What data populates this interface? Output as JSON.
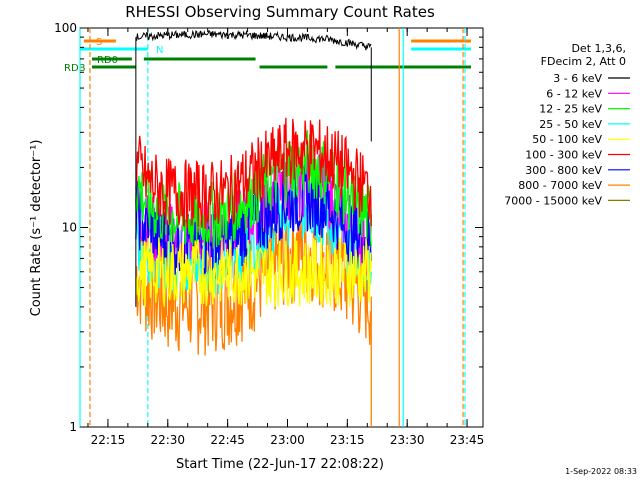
{
  "chart_data": {
    "type": "line",
    "title": "RHESSI Observing Summary Count Rates",
    "xlabel": "Start Time (22-Jun-17 22:08:22)",
    "ylabel": "Count Rate (s⁻¹ detector⁻¹)",
    "y_scale": "log",
    "ylim": [
      1,
      100
    ],
    "y_ticks": [
      "1",
      "10",
      "100"
    ],
    "xlim": [
      "22:08",
      "23:49"
    ],
    "x_ticks": [
      "22:15",
      "22:30",
      "22:45",
      "23:00",
      "23:15",
      "23:30",
      "23:45"
    ],
    "legend_header": [
      "Det 1,3,6,",
      "FDecim 2, Att 0"
    ],
    "legend_position": "right",
    "timestamp": "1-Sep-2022 08:33",
    "flags": [
      {
        "label": "S",
        "color": "#ff8000",
        "segments": [
          [
            "22:09",
            "22:17"
          ],
          [
            "23:31",
            "23:46"
          ]
        ]
      },
      {
        "label": "N",
        "color": "#00ffff",
        "segments": [
          [
            "22:08",
            "22:25"
          ],
          [
            "23:31",
            "23:46"
          ]
        ]
      },
      {
        "label": "RD0",
        "color": "#008000",
        "segments": [
          [
            "22:11",
            "22:21"
          ],
          [
            "22:24",
            "22:52"
          ]
        ]
      },
      {
        "label": "RDB",
        "color": "#008000",
        "segments": [
          [
            "22:11",
            "22:22"
          ],
          [
            "22:53",
            "23:10"
          ],
          [
            "23:12",
            "23:46"
          ]
        ]
      }
    ],
    "vlines": [
      {
        "time": "22:08",
        "color": "#00ffff",
        "dash": false
      },
      {
        "time": "22:10:30",
        "color": "#ff8000",
        "dash": true
      },
      {
        "time": "22:25",
        "color": "#00ffff",
        "dash": true
      },
      {
        "time": "23:28",
        "color": "#ff8000",
        "dash": false
      },
      {
        "time": "23:29",
        "color": "#00ffff",
        "dash": false
      },
      {
        "time": "23:44",
        "color": "#ff8000",
        "dash": true
      },
      {
        "time": "23:44:30",
        "color": "#00ffff",
        "dash": true
      }
    ],
    "series": [
      {
        "name": "3 - 6 keV",
        "color": "#000000",
        "x": [
          "22:22",
          "22:30",
          "22:40",
          "22:50",
          "23:00",
          "23:10",
          "23:17",
          "23:21"
        ],
        "y": [
          90,
          92,
          93,
          92,
          90,
          88,
          83,
          80
        ]
      },
      {
        "name": "6 - 12 keV",
        "color": "#ff00ff",
        "x": [
          "22:22",
          "22:25",
          "22:30",
          "22:38",
          "22:45",
          "22:52",
          "23:00",
          "23:05",
          "23:10",
          "23:15",
          "23:21"
        ],
        "y": [
          14,
          10,
          9,
          9,
          9.5,
          12,
          16,
          17,
          15,
          11,
          8
        ]
      },
      {
        "name": "12 - 25 keV",
        "color": "#00ff00",
        "x": [
          "22:22",
          "22:25",
          "22:30",
          "22:38",
          "22:45",
          "22:52",
          "23:00",
          "23:05",
          "23:10",
          "23:15",
          "23:21"
        ],
        "y": [
          17,
          13,
          11.5,
          11,
          12,
          15,
          20,
          21,
          19,
          14.5,
          11
        ]
      },
      {
        "name": "25 - 50 keV",
        "color": "#00ffff",
        "x": [
          "22:22",
          "22:25",
          "22:30",
          "22:38",
          "22:45",
          "22:52",
          "23:00",
          "23:05",
          "23:10",
          "23:15",
          "23:21"
        ],
        "y": [
          9,
          8,
          7,
          6.5,
          7,
          9,
          12,
          13,
          11,
          8.5,
          7
        ]
      },
      {
        "name": "50 - 100 keV",
        "color": "#ffff00",
        "x": [
          "22:22",
          "23:21"
        ],
        "y": [
          6,
          6
        ]
      },
      {
        "name": "100 - 300 keV",
        "color": "#ff0000",
        "x": [
          "22:22",
          "22:25",
          "22:30",
          "22:38",
          "22:45",
          "22:52",
          "23:00",
          "23:05",
          "23:10",
          "23:15",
          "23:21"
        ],
        "y": [
          21,
          17,
          15,
          14.5,
          15,
          19,
          24,
          25,
          23,
          19,
          15
        ]
      },
      {
        "name": "300 - 800 keV",
        "color": "#0000ff",
        "x": [
          "22:22",
          "22:25",
          "22:30",
          "22:38",
          "22:45",
          "22:52",
          "23:00",
          "23:05",
          "23:10",
          "23:15",
          "23:21"
        ],
        "y": [
          12,
          10,
          8.5,
          8,
          8.5,
          10.5,
          13.5,
          14,
          13,
          10,
          8.5
        ]
      },
      {
        "name": "800 - 7000 keV",
        "color": "#ff8000",
        "x": [
          "22:22",
          "22:25",
          "22:30",
          "22:38",
          "22:45",
          "22:52",
          "23:00",
          "23:05",
          "23:10",
          "23:15",
          "23:21"
        ],
        "y": [
          6,
          5,
          4.3,
          4.2,
          4.5,
          5.5,
          7.5,
          8,
          7,
          5.5,
          4.5
        ]
      },
      {
        "name": "7000 - 15000 keV",
        "color": "#808000",
        "x": [],
        "y": []
      }
    ]
  }
}
